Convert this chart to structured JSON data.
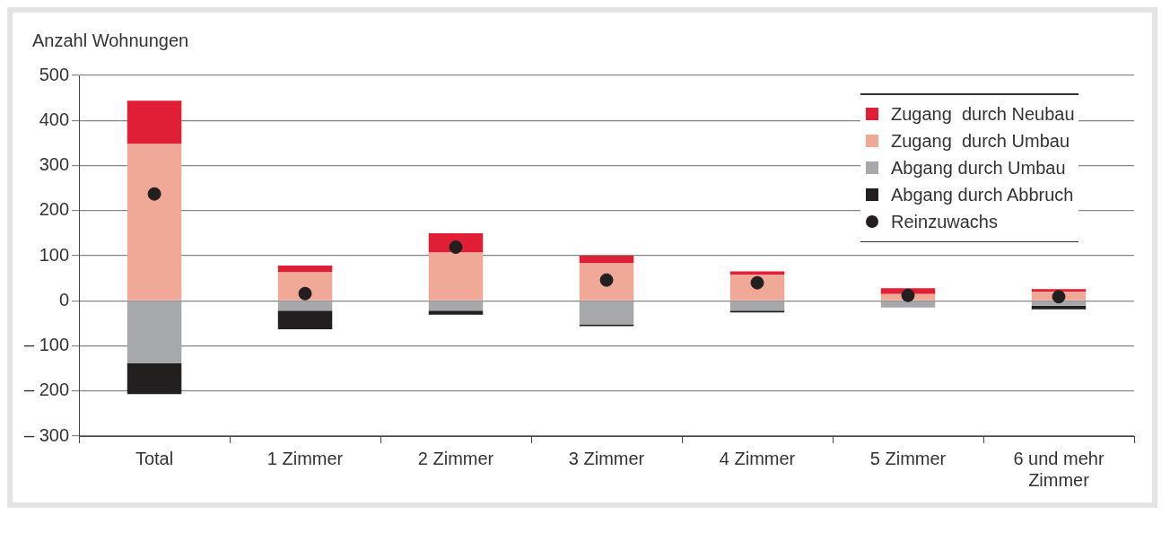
{
  "chart_data": {
    "type": "bar",
    "stacked": true,
    "ylabel": "Anzahl Wohnungen",
    "categories": [
      "Total",
      "1 Zimmer",
      "2 Zimmer",
      "3 Zimmer",
      "4 Zimmer",
      "5 Zimmer",
      "6 und mehr Zimmer"
    ],
    "series": [
      {
        "name": "Zugang  durch Umbau",
        "color": "#f0a996",
        "values": [
          348,
          63,
          107,
          83,
          57,
          15,
          20
        ]
      },
      {
        "name": "Zugang  durch Neubau",
        "color": "#e01f36",
        "values": [
          96,
          15,
          43,
          17,
          8,
          13,
          6
        ]
      },
      {
        "name": "Abgang durch Umbau",
        "color": "#a7a8ab",
        "values": [
          -139,
          -22,
          -22,
          -52,
          -22,
          -15,
          -11
        ]
      },
      {
        "name": "Abgang durch Abbruch",
        "color": "#231f20",
        "values": [
          -68,
          -41,
          -9,
          -4,
          -4,
          0,
          -8
        ]
      },
      {
        "name": "Reinzuwachs",
        "type": "scatter",
        "marker": "circle",
        "color": "#231f20",
        "x": [
          "Total",
          "1 Zimmer",
          "2 Zimmer",
          "3 Zimmer",
          "4 Zimmer",
          "5 Zimmer",
          "6 und mehr Zimmer"
        ],
        "values": [
          237,
          16,
          119,
          46,
          40,
          12,
          9
        ]
      }
    ],
    "ylim": [
      -300,
      500
    ],
    "yticks": [
      {
        "value": -300,
        "label": "– 300"
      },
      {
        "value": -200,
        "label": "– 200"
      },
      {
        "value": -100,
        "label": "– 100"
      },
      0,
      100,
      200,
      300,
      400,
      500
    ],
    "grid": "y",
    "legend": "top right"
  }
}
